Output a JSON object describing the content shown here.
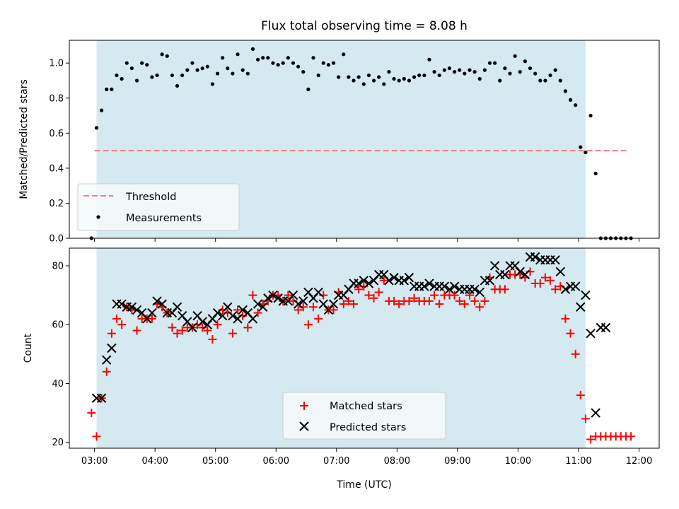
{
  "chart_data": [
    {
      "type": "scatter",
      "title": "Flux total observing time = 8.08 h",
      "xlabel": "",
      "ylabel": "Matched/Predicted stars",
      "xlim": [
        "02:35",
        "12:20"
      ],
      "ylim": [
        0,
        1.13
      ],
      "yticks": [
        0.0,
        0.2,
        0.4,
        0.6,
        0.8,
        1.0
      ],
      "ytick_labels": [
        "0.0",
        "0.2",
        "0.4",
        "0.6",
        "0.8",
        "1.0"
      ],
      "observing_window": [
        "03:02",
        "11:07"
      ],
      "shade_color": "#d4eaf0",
      "legend_position": "lower left",
      "threshold": {
        "name": "Threshold",
        "value": 0.5,
        "x_range": [
          "03:00",
          "11:50"
        ],
        "color": "#f08080",
        "style": "dashed"
      },
      "series": [
        {
          "name": "Measurements",
          "color": "#000000",
          "marker": "dot",
          "x": [
            "02:57",
            "03:02",
            "03:07",
            "03:12",
            "03:17",
            "03:22",
            "03:27",
            "03:32",
            "03:37",
            "03:42",
            "03:47",
            "03:52",
            "03:57",
            "04:02",
            "04:07",
            "04:12",
            "04:17",
            "04:22",
            "04:27",
            "04:32",
            "04:37",
            "04:42",
            "04:47",
            "04:52",
            "04:57",
            "05:02",
            "05:07",
            "05:12",
            "05:17",
            "05:22",
            "05:27",
            "05:32",
            "05:37",
            "05:42",
            "05:47",
            "05:52",
            "05:57",
            "06:02",
            "06:07",
            "06:12",
            "06:17",
            "06:22",
            "06:27",
            "06:32",
            "06:37",
            "06:42",
            "06:47",
            "06:52",
            "06:57",
            "07:02",
            "07:07",
            "07:12",
            "07:17",
            "07:22",
            "07:27",
            "07:32",
            "07:37",
            "07:42",
            "07:47",
            "07:52",
            "07:57",
            "08:02",
            "08:07",
            "08:12",
            "08:17",
            "08:22",
            "08:27",
            "08:32",
            "08:37",
            "08:42",
            "08:47",
            "08:52",
            "08:57",
            "09:02",
            "09:07",
            "09:12",
            "09:17",
            "09:22",
            "09:27",
            "09:32",
            "09:37",
            "09:42",
            "09:47",
            "09:52",
            "09:57",
            "10:02",
            "10:07",
            "10:12",
            "10:17",
            "10:22",
            "10:27",
            "10:32",
            "10:37",
            "10:42",
            "10:47",
            "10:52",
            "10:57",
            "11:02",
            "11:07",
            "11:12",
            "11:17",
            "11:22",
            "11:27",
            "11:32",
            "11:37",
            "11:42",
            "11:47",
            "11:52"
          ],
          "y": [
            0.0,
            0.63,
            0.73,
            0.85,
            0.85,
            0.93,
            0.91,
            1.0,
            0.97,
            0.9,
            1.0,
            0.99,
            0.92,
            0.93,
            1.05,
            1.04,
            0.93,
            0.87,
            0.93,
            0.96,
            1.0,
            0.96,
            0.97,
            0.98,
            0.88,
            0.94,
            1.03,
            0.97,
            0.94,
            1.05,
            0.96,
            0.94,
            1.08,
            1.02,
            1.03,
            1.03,
            1.0,
            0.99,
            1.0,
            1.03,
            1.0,
            0.98,
            0.95,
            0.85,
            1.03,
            0.93,
            1.0,
            0.99,
            1.0,
            0.92,
            1.05,
            0.92,
            0.9,
            0.92,
            0.88,
            0.93,
            0.9,
            0.92,
            0.88,
            0.95,
            0.91,
            0.9,
            0.91,
            0.9,
            0.92,
            0.93,
            0.93,
            1.02,
            0.95,
            0.93,
            0.96,
            0.97,
            0.95,
            0.96,
            0.94,
            0.96,
            0.95,
            0.91,
            0.96,
            1.0,
            1.0,
            0.9,
            0.97,
            0.94,
            1.04,
            0.95,
            1.01,
            0.97,
            0.94,
            0.9,
            0.9,
            0.93,
            0.96,
            0.9,
            0.84,
            0.79,
            0.76,
            0.52,
            0.49,
            0.7,
            0.37,
            0.0,
            0.0,
            0.0,
            0.0,
            0.0,
            0.0,
            0.0
          ]
        }
      ]
    },
    {
      "type": "scatter",
      "title": "",
      "xlabel": "Time (UTC)",
      "ylabel": "Count",
      "xlim": [
        "02:35",
        "12:20"
      ],
      "ylim": [
        18,
        86
      ],
      "xticks": [
        "03:00",
        "04:00",
        "05:00",
        "06:00",
        "07:00",
        "08:00",
        "09:00",
        "10:00",
        "11:00",
        "12:00"
      ],
      "yticks": [
        20,
        40,
        60,
        80
      ],
      "ytick_labels": [
        "20",
        "40",
        "60",
        "80"
      ],
      "observing_window": [
        "03:02",
        "11:07"
      ],
      "shade_color": "#d4eaf0",
      "legend_position": "lower center",
      "series": [
        {
          "name": "Matched stars",
          "color": "#ff0000",
          "marker": "plus",
          "x": [
            "02:57",
            "03:02",
            "03:07",
            "03:12",
            "03:17",
            "03:22",
            "03:27",
            "03:32",
            "03:37",
            "03:42",
            "03:47",
            "03:52",
            "03:57",
            "04:02",
            "04:07",
            "04:12",
            "04:17",
            "04:22",
            "04:27",
            "04:32",
            "04:37",
            "04:42",
            "04:47",
            "04:52",
            "04:57",
            "05:02",
            "05:07",
            "05:12",
            "05:17",
            "05:22",
            "05:27",
            "05:32",
            "05:37",
            "05:42",
            "05:47",
            "05:52",
            "05:57",
            "06:02",
            "06:07",
            "06:12",
            "06:17",
            "06:22",
            "06:27",
            "06:32",
            "06:37",
            "06:42",
            "06:47",
            "06:52",
            "06:57",
            "07:02",
            "07:07",
            "07:12",
            "07:17",
            "07:22",
            "07:27",
            "07:32",
            "07:37",
            "07:42",
            "07:47",
            "07:52",
            "07:57",
            "08:02",
            "08:07",
            "08:12",
            "08:17",
            "08:22",
            "08:27",
            "08:32",
            "08:37",
            "08:42",
            "08:47",
            "08:52",
            "08:57",
            "09:02",
            "09:07",
            "09:12",
            "09:17",
            "09:22",
            "09:27",
            "09:32",
            "09:37",
            "09:42",
            "09:47",
            "09:52",
            "09:57",
            "10:02",
            "10:07",
            "10:12",
            "10:17",
            "10:22",
            "10:27",
            "10:32",
            "10:37",
            "10:42",
            "10:47",
            "10:52",
            "10:57",
            "11:02",
            "11:07",
            "11:12",
            "11:17",
            "11:22",
            "11:27",
            "11:32",
            "11:37",
            "11:42",
            "11:47",
            "11:52"
          ],
          "y": [
            30,
            22,
            35,
            44,
            57,
            62,
            60,
            66,
            65,
            58,
            62,
            62,
            62,
            67,
            66,
            64,
            59,
            57,
            58,
            59,
            59,
            60,
            59,
            58,
            55,
            60,
            65,
            64,
            57,
            65,
            63,
            59,
            70,
            64,
            67,
            68,
            70,
            70,
            68,
            70,
            68,
            65,
            66,
            60,
            66,
            62,
            70,
            65,
            65,
            71,
            67,
            68,
            67,
            72,
            73,
            70,
            69,
            71,
            75,
            68,
            68,
            67,
            68,
            68,
            69,
            68,
            68,
            68,
            70,
            67,
            70,
            70,
            70,
            68,
            67,
            70,
            68,
            66,
            68,
            76,
            72,
            72,
            72,
            77,
            77,
            77,
            76,
            78,
            74,
            74,
            76,
            75,
            72,
            73,
            62,
            57,
            50,
            36,
            28,
            21,
            22,
            22,
            22,
            22,
            22,
            22,
            22,
            22
          ]
        },
        {
          "name": "Predicted stars",
          "color": "#000000",
          "marker": "x",
          "x": [
            "03:02",
            "03:07",
            "03:12",
            "03:17",
            "03:22",
            "03:27",
            "03:32",
            "03:37",
            "03:42",
            "03:47",
            "03:52",
            "03:57",
            "04:02",
            "04:07",
            "04:12",
            "04:17",
            "04:22",
            "04:27",
            "04:32",
            "04:37",
            "04:42",
            "04:47",
            "04:52",
            "04:57",
            "05:02",
            "05:07",
            "05:12",
            "05:17",
            "05:22",
            "05:27",
            "05:32",
            "05:37",
            "05:42",
            "05:47",
            "05:52",
            "05:57",
            "06:02",
            "06:07",
            "06:12",
            "06:17",
            "06:22",
            "06:27",
            "06:32",
            "06:37",
            "06:42",
            "06:47",
            "06:52",
            "06:57",
            "07:02",
            "07:07",
            "07:12",
            "07:17",
            "07:22",
            "07:27",
            "07:32",
            "07:37",
            "07:42",
            "07:47",
            "07:52",
            "07:57",
            "08:02",
            "08:07",
            "08:12",
            "08:17",
            "08:22",
            "08:27",
            "08:32",
            "08:37",
            "08:42",
            "08:47",
            "08:52",
            "08:57",
            "09:02",
            "09:07",
            "09:12",
            "09:17",
            "09:22",
            "09:27",
            "09:32",
            "09:37",
            "09:42",
            "09:47",
            "09:52",
            "09:57",
            "10:02",
            "10:07",
            "10:12",
            "10:17",
            "10:22",
            "10:27",
            "10:32",
            "10:37",
            "10:42",
            "10:47",
            "10:52",
            "10:57",
            "11:02",
            "11:07",
            "11:12",
            "11:17",
            "11:22",
            "11:27"
          ],
          "y": [
            35,
            35,
            48,
            52,
            67,
            67,
            66,
            66,
            65,
            64,
            62,
            64,
            68,
            67,
            64,
            64,
            66,
            63,
            61,
            59,
            63,
            61,
            60,
            62,
            64,
            63,
            66,
            63,
            62,
            65,
            64,
            62,
            67,
            66,
            69,
            70,
            69,
            68,
            68,
            70,
            67,
            68,
            71,
            69,
            71,
            67,
            65,
            67,
            70,
            70,
            72,
            74,
            74,
            75,
            74,
            75,
            77,
            77,
            75,
            76,
            75,
            75,
            76,
            73,
            73,
            73,
            74,
            73,
            73,
            73,
            72,
            73,
            72,
            72,
            72,
            72,
            71,
            75,
            75,
            80,
            77,
            77,
            80,
            80,
            78,
            77,
            83,
            83,
            82,
            82,
            82,
            82,
            78,
            72,
            73,
            73,
            66,
            70,
            57,
            30,
            59,
            59
          ]
        }
      ]
    }
  ]
}
